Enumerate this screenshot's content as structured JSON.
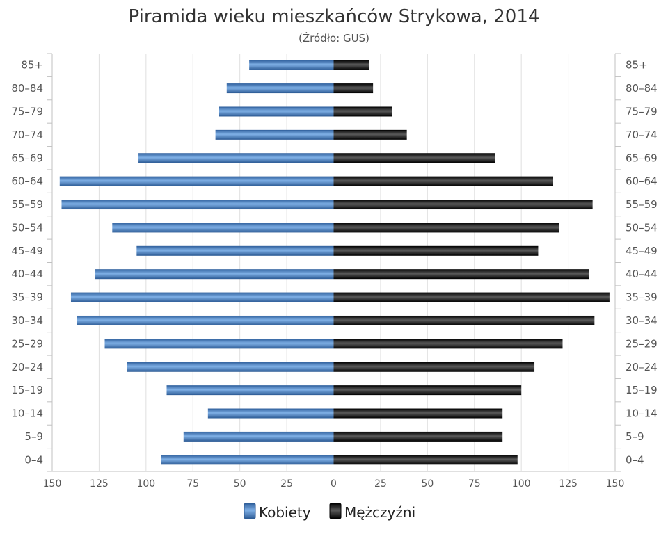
{
  "chart_data": {
    "type": "bar",
    "orientation": "horizontal",
    "layout": "population-pyramid",
    "title": "Piramida wieku mieszkańców Strykowa, 2014",
    "subtitle": "(Źródło: GUS)",
    "categories": [
      "0–4",
      "5–9",
      "10–14",
      "15–19",
      "20–24",
      "25–29",
      "30–34",
      "35–39",
      "40–44",
      "45–49",
      "50–54",
      "55–59",
      "60–64",
      "65–69",
      "70–74",
      "75–79",
      "80–84",
      "85+"
    ],
    "series": [
      {
        "name": "Kobiety",
        "side": "left",
        "color": "#4a7fc0",
        "values": [
          92,
          80,
          67,
          89,
          110,
          122,
          137,
          140,
          127,
          105,
          118,
          145,
          146,
          104,
          63,
          61,
          57,
          45
        ]
      },
      {
        "name": "Mężczyźni",
        "side": "right",
        "color": "#111111",
        "values": [
          98,
          90,
          90,
          100,
          107,
          122,
          139,
          147,
          136,
          109,
          120,
          138,
          117,
          86,
          39,
          31,
          21,
          19
        ]
      }
    ],
    "xlim": [
      -150,
      150
    ],
    "x_ticks": [
      {
        "value": -150,
        "label": "150"
      },
      {
        "value": -125,
        "label": "125"
      },
      {
        "value": -100,
        "label": "100"
      },
      {
        "value": -75,
        "label": "75"
      },
      {
        "value": -50,
        "label": "50"
      },
      {
        "value": -25,
        "label": "25"
      },
      {
        "value": 0,
        "label": "0"
      },
      {
        "value": 25,
        "label": "25"
      },
      {
        "value": 50,
        "label": "50"
      },
      {
        "value": 75,
        "label": "75"
      },
      {
        "value": 100,
        "label": "100"
      },
      {
        "value": 125,
        "label": "125"
      },
      {
        "value": 150,
        "label": "150"
      }
    ],
    "grid": true,
    "legend": "bottom-center"
  }
}
